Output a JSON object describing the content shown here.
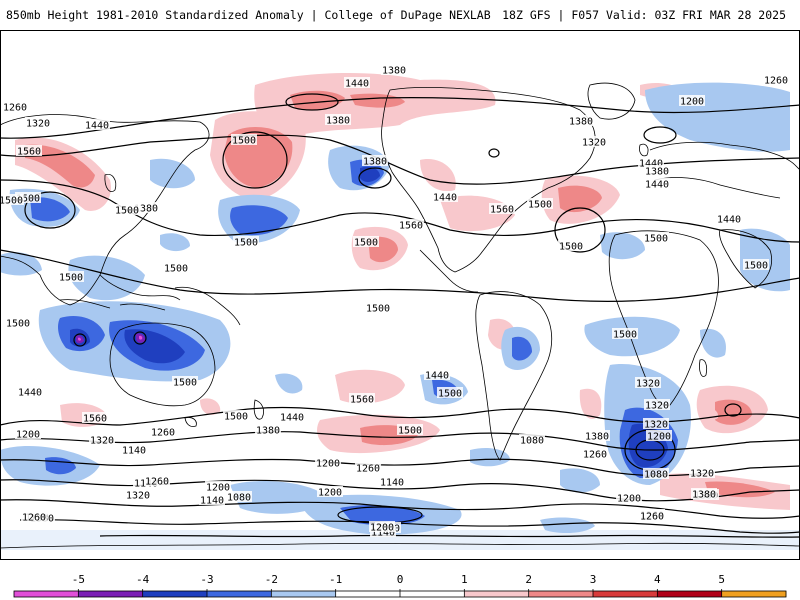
{
  "header": {
    "left": "850mb Height 1981-2010 Standardized Anomaly | College of DuPage NEXLAB",
    "right": "18Z GFS | F057 Valid: 03Z FRI MAR 28 2025"
  },
  "colors": {
    "neg5": "#e14fd8",
    "neg4": "#7b1fb5",
    "neg3": "#1f3fbf",
    "neg2": "#3d68e0",
    "neg1": "#a8c8f0",
    "zero": "#ffffff",
    "pos1": "#f8c8cc",
    "pos2": "#ee8888",
    "pos3": "#d83b3b",
    "pos4": "#b00018",
    "pos5": "#f0a020",
    "contour": "#000000",
    "coast": "#000000"
  },
  "scale": {
    "ticks": [
      "-5",
      "-4",
      "-3",
      "-2",
      "-1",
      "0",
      "1",
      "2",
      "3",
      "4",
      "5"
    ]
  },
  "contour_labels": [
    "1380",
    "1440",
    "1260",
    "1200",
    "1260",
    "1380",
    "1320",
    "1440",
    "1500",
    "1380",
    "1320",
    "1560",
    "1380",
    "1440",
    "1380",
    "1500",
    "1500",
    "1440",
    "1380",
    "1440",
    "1560",
    "1500",
    "1500",
    "1560",
    "1500",
    "1440",
    "1500",
    "1500",
    "1500",
    "1500",
    "1500",
    "1500",
    "1500",
    "1500",
    "1500",
    "1440",
    "1320",
    "1500",
    "1560",
    "1500",
    "1500",
    "1440",
    "1560",
    "1500",
    "1380",
    "1260",
    "1200",
    "1320",
    "1260",
    "1140",
    "1200",
    "1200",
    "1140",
    "1080",
    "1140",
    "1200",
    "1320",
    "1380",
    "1080",
    "1140",
    "1200",
    "1260",
    "1380",
    "1320",
    "1260",
    "1320",
    "1080",
    "1200",
    "1260",
    "1320",
    "1380",
    "1260",
    "1200",
    "1140",
    "1380",
    "1440",
    "1320",
    "1200",
    "1260"
  ]
}
